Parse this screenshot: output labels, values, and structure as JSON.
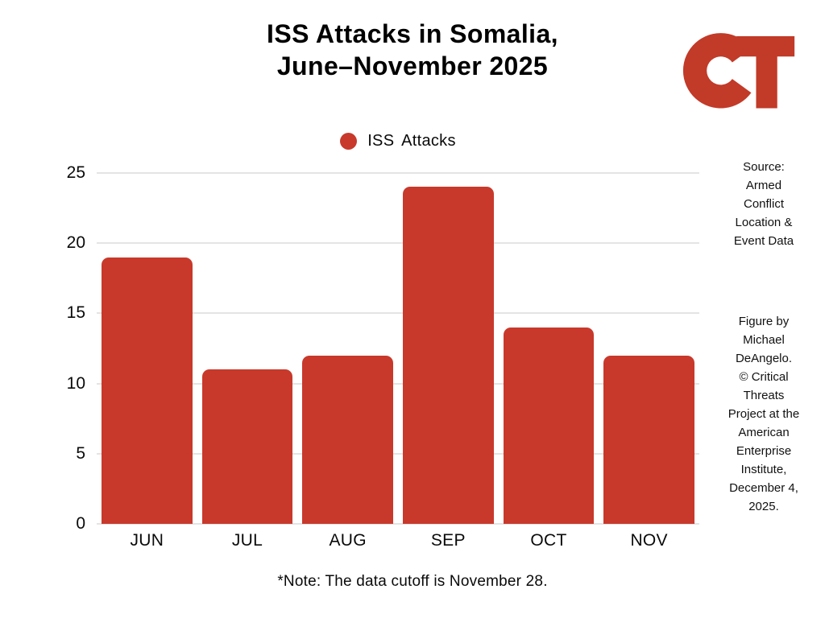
{
  "header": {
    "title": "ISS Attacks in Somalia,\nJune–November 2025"
  },
  "logo": {
    "name": "CT monogram (Critical Threats)",
    "color": "#c23a28"
  },
  "legend": {
    "label": "ISS Attacks",
    "marker_color": "#c8392b"
  },
  "annotations": {
    "source": "Source:\nArmed\nConflict\nLocation &\nEvent Data",
    "credit": "Figure by\nMichael\nDeAngelo.\n© Critical\nThreats\nProject at the\nAmerican\nEnterprise\nInstitute,\nDecember 4,\n2025.",
    "footnote": "*Note: The data cutoff is November 28."
  },
  "chart_data": {
    "type": "bar",
    "title": "ISS Attacks in Somalia, June–November 2025",
    "series_name": "ISS Attacks",
    "categories": [
      "JUN",
      "JUL",
      "AUG",
      "SEP",
      "OCT",
      "NOV"
    ],
    "values": [
      19,
      11,
      12,
      24,
      14,
      12
    ],
    "xlabel": "",
    "ylabel": "",
    "ylim": [
      0,
      25
    ],
    "yticks": [
      0,
      5,
      10,
      15,
      20,
      25
    ],
    "grid": true,
    "legend_position": "top-center",
    "bar_color": "#c8392b",
    "gridline_color": "#e4e4e4"
  }
}
